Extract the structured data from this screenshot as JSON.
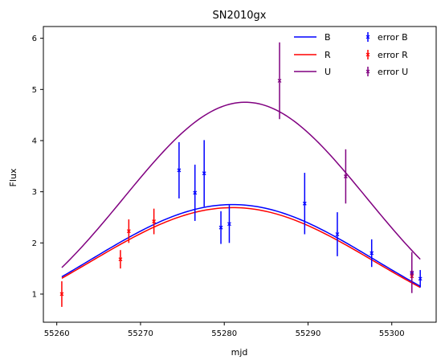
{
  "chart_data": {
    "type": "line",
    "title": "SN2010gx",
    "xlabel": "mjd",
    "ylabel": "Flux",
    "xlim": [
      55258.4,
      55305.3
    ],
    "ylim": [
      0.45,
      6.23
    ],
    "x_ticks": [
      55260,
      55270,
      55280,
      55290,
      55300
    ],
    "y_ticks": [
      1,
      2,
      3,
      4,
      5,
      6
    ],
    "grid": false,
    "legend_position": "top-right",
    "curves": [
      {
        "name": "B",
        "color": "#0000ff",
        "x_range": [
          55260.6,
          55303.4
        ],
        "peak_x": 55281.0,
        "peak_y": 2.75,
        "sigma": 17.0
      },
      {
        "name": "R",
        "color": "#ff0000",
        "x_range": [
          55260.6,
          55303.4
        ],
        "peak_x": 55281.0,
        "peak_y": 2.69,
        "sigma": 17.0
      },
      {
        "name": "U",
        "color": "#800080",
        "x_range": [
          55260.6,
          55303.4
        ],
        "peak_x": 55282.5,
        "peak_y": 4.75,
        "sigma": 14.5
      }
    ],
    "error_series": [
      {
        "name": "error B",
        "color": "#0000ff",
        "points": [
          {
            "x": 55274.6,
            "y": 3.42,
            "err": 0.55
          },
          {
            "x": 55276.5,
            "y": 2.98,
            "err": 0.55
          },
          {
            "x": 55277.6,
            "y": 3.36,
            "err": 0.65
          },
          {
            "x": 55279.6,
            "y": 2.3,
            "err": 0.32
          },
          {
            "x": 55280.6,
            "y": 2.37,
            "err": 0.37
          },
          {
            "x": 55289.6,
            "y": 2.77,
            "err": 0.6
          },
          {
            "x": 55293.5,
            "y": 2.17,
            "err": 0.43
          },
          {
            "x": 55297.6,
            "y": 1.8,
            "err": 0.27
          },
          {
            "x": 55302.4,
            "y": 1.4,
            "err": 0.15
          },
          {
            "x": 55303.4,
            "y": 1.3,
            "err": 0.17
          }
        ]
      },
      {
        "name": "error R",
        "color": "#ff0000",
        "points": [
          {
            "x": 55260.6,
            "y": 1.0,
            "err": 0.25
          },
          {
            "x": 55267.6,
            "y": 1.68,
            "err": 0.18
          },
          {
            "x": 55268.6,
            "y": 2.23,
            "err": 0.23
          },
          {
            "x": 55271.6,
            "y": 2.42,
            "err": 0.25
          },
          {
            "x": 55302.4,
            "y": 1.35,
            "err": 0.12
          }
        ]
      },
      {
        "name": "error U",
        "color": "#800080",
        "points": [
          {
            "x": 55286.6,
            "y": 5.17,
            "err": 0.75
          },
          {
            "x": 55294.5,
            "y": 3.3,
            "err": 0.53
          },
          {
            "x": 55302.4,
            "y": 1.42,
            "err": 0.4
          }
        ]
      }
    ],
    "legend": [
      {
        "label": "B",
        "kind": "line",
        "color": "#0000ff"
      },
      {
        "label": "R",
        "kind": "line",
        "color": "#ff0000"
      },
      {
        "label": "U",
        "kind": "line",
        "color": "#800080"
      },
      {
        "label": "error B",
        "kind": "errorbar",
        "color": "#0000ff"
      },
      {
        "label": "error R",
        "kind": "errorbar",
        "color": "#ff0000"
      },
      {
        "label": "error U",
        "kind": "errorbar",
        "color": "#800080"
      }
    ]
  }
}
